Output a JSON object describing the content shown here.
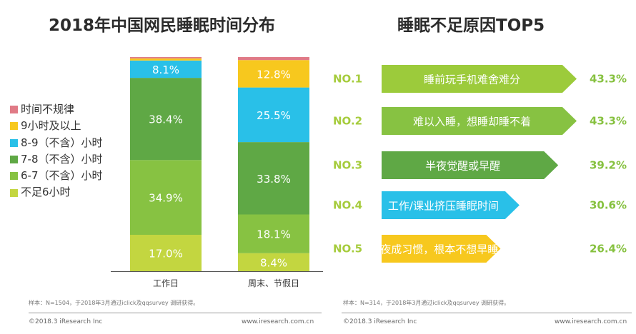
{
  "left_title": "2018年中国网民睡眠时间分布",
  "right_title": "睡眠不足原因TOP5",
  "chart_data": [
    {
      "type": "bar",
      "stacked": true,
      "title": "2018年中国网民睡眠时间分布",
      "categories": [
        "工作日",
        "周末、节假日"
      ],
      "unit": "%",
      "series": [
        {
          "name": "不足6小时",
          "color": "#c3d640",
          "values": [
            17.0,
            8.4
          ]
        },
        {
          "name": "6-7（不含）小时",
          "color": "#87c242",
          "values": [
            34.9,
            18.1
          ]
        },
        {
          "name": "7-8（不含）小时",
          "color": "#5fa845",
          "values": [
            38.4,
            33.8
          ]
        },
        {
          "name": "8-9（不含）小时",
          "color": "#29c0e8",
          "values": [
            8.1,
            25.5
          ]
        },
        {
          "name": "9小时及以上",
          "color": "#f7c81e",
          "values": [
            1.0,
            12.8
          ]
        },
        {
          "name": "时间不规律",
          "color": "#e07a86",
          "values": [
            0.6,
            1.4
          ]
        }
      ],
      "labeled_series": [
        "不足6小时",
        "6-7（不含）小时",
        "7-8（不含）小时",
        "8-9（不含）小时",
        "9小时及以上"
      ],
      "legend_order": [
        "时间不规律",
        "9小时及以上",
        "8-9（不含）小时",
        "7-8（不含）小时",
        "6-7（不含）小时",
        "不足6小时"
      ],
      "legend_position": "left",
      "ylim": [
        0,
        100
      ]
    },
    {
      "type": "bar",
      "orientation": "horizontal",
      "title": "睡眠不足原因TOP5",
      "unit": "%",
      "items": [
        {
          "rank": "NO.1",
          "label": "睡前玩手机难舍难分",
          "value": 43.3,
          "color": "#9ccb3b"
        },
        {
          "rank": "NO.2",
          "label": "难以入睡，想睡却睡不着",
          "value": 43.3,
          "color": "#87c242"
        },
        {
          "rank": "NO.3",
          "label": "半夜觉醒或早醒",
          "value": 39.2,
          "color": "#5fa845"
        },
        {
          "rank": "NO.4",
          "label": "工作/课业挤压睡眠时间",
          "value": 30.6,
          "color": "#29c0e8"
        },
        {
          "rank": "NO.5",
          "label": "熬夜成习惯，根本不想早睡",
          "value": 26.4,
          "color": "#f7c81e"
        }
      ],
      "rank_color": "#a6cc3d",
      "value_color": "#86c13f"
    }
  ],
  "notes": {
    "left": "样本：N=1504，于2018年3月通过iclick及qqsurvey 调研获得。",
    "right": "样本：N=314，于2018年3月通过iclick及qqsurvey 调研获得。"
  },
  "footer": {
    "left_copyright": "©2018.3 iResearch Inc",
    "left_site": "www.iresearch.com.cn",
    "right_copyright": "©2018.3 iResearch Inc",
    "right_site": "www.iresearch.com.cn"
  }
}
